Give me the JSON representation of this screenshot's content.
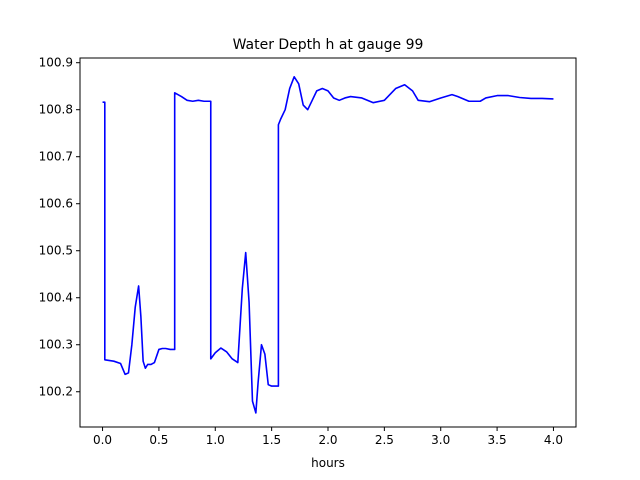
{
  "chart_data": {
    "type": "line",
    "title": "Water Depth h at gauge 99",
    "xlabel": "hours",
    "ylabel": "",
    "xlim": [
      -0.2,
      4.2
    ],
    "ylim": [
      100.125,
      100.91
    ],
    "grid": false,
    "x_ticks": [
      0.0,
      0.5,
      1.0,
      1.5,
      2.0,
      2.5,
      3.0,
      3.5,
      4.0
    ],
    "x_tick_labels": [
      "0.0",
      "0.5",
      "1.0",
      "1.5",
      "2.0",
      "2.5",
      "3.0",
      "3.5",
      "4.0"
    ],
    "y_ticks": [
      100.2,
      100.3,
      100.4,
      100.5,
      100.6,
      100.7,
      100.8,
      100.9
    ],
    "y_tick_labels": [
      "100.2",
      "100.3",
      "100.4",
      "100.5",
      "100.6",
      "100.7",
      "100.8",
      "100.9"
    ],
    "series": [
      {
        "color": "#0000ff",
        "x": [
          0.0,
          0.02,
          0.02,
          0.1,
          0.16,
          0.2,
          0.23,
          0.26,
          0.29,
          0.32,
          0.34,
          0.36,
          0.38,
          0.4,
          0.43,
          0.46,
          0.5,
          0.53,
          0.56,
          0.6,
          0.64,
          0.64,
          0.7,
          0.75,
          0.8,
          0.85,
          0.9,
          0.96,
          0.96,
          1.0,
          1.05,
          1.1,
          1.15,
          1.2,
          1.24,
          1.27,
          1.3,
          1.33,
          1.36,
          1.38,
          1.41,
          1.44,
          1.47,
          1.5,
          1.53,
          1.56,
          1.56,
          1.58,
          1.62,
          1.66,
          1.7,
          1.74,
          1.78,
          1.82,
          1.86,
          1.9,
          1.95,
          2.0,
          2.05,
          2.1,
          2.15,
          2.2,
          2.3,
          2.4,
          2.5,
          2.6,
          2.68,
          2.75,
          2.8,
          2.9,
          3.0,
          3.1,
          3.15,
          3.25,
          3.35,
          3.4,
          3.5,
          3.6,
          3.7,
          3.8,
          3.9,
          4.0
        ],
        "y": [
          100.816,
          100.816,
          100.268,
          100.265,
          100.26,
          100.237,
          100.24,
          100.3,
          100.38,
          100.425,
          100.36,
          100.265,
          100.25,
          100.258,
          100.258,
          100.262,
          100.29,
          100.292,
          100.292,
          100.29,
          100.29,
          100.836,
          100.828,
          100.82,
          100.818,
          100.82,
          100.818,
          100.818,
          100.27,
          100.283,
          100.293,
          100.285,
          100.27,
          100.262,
          100.42,
          100.496,
          100.39,
          100.18,
          100.155,
          100.22,
          100.3,
          100.28,
          100.215,
          100.212,
          100.212,
          100.212,
          100.768,
          100.78,
          100.8,
          100.845,
          100.87,
          100.855,
          100.81,
          100.8,
          100.82,
          100.84,
          100.845,
          100.84,
          100.825,
          100.82,
          100.825,
          100.828,
          100.825,
          100.815,
          100.82,
          100.845,
          100.853,
          100.84,
          100.82,
          100.817,
          100.825,
          100.832,
          100.828,
          100.818,
          100.818,
          100.825,
          100.83,
          100.83,
          100.826,
          100.824,
          100.824,
          100.823
        ]
      }
    ]
  }
}
